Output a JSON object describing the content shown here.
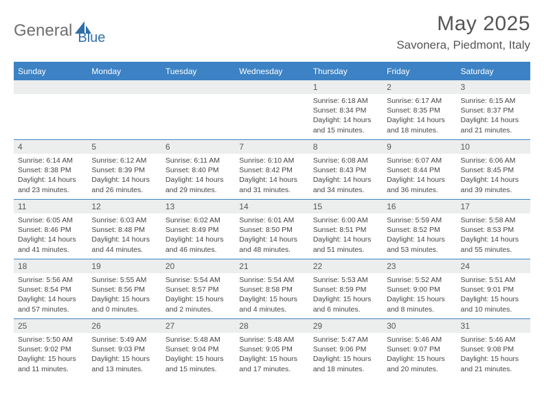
{
  "logo": {
    "word1": "General",
    "word2": "Blue",
    "shape_color": "#2f6fa8",
    "word1_color": "#6e6e6e"
  },
  "title": "May 2025",
  "location": "Savonera, Piedmont, Italy",
  "colors": {
    "header_bar": "#3c82c4",
    "daynum_bg": "#eceded",
    "text": "#3a3a3a",
    "border": "#3c82c4"
  },
  "typography": {
    "title_fontsize": 30,
    "location_fontsize": 17,
    "dow_fontsize": 12,
    "body_fontsize": 10.5
  },
  "days_of_week": [
    "Sunday",
    "Monday",
    "Tuesday",
    "Wednesday",
    "Thursday",
    "Friday",
    "Saturday"
  ],
  "weeks": [
    [
      null,
      null,
      null,
      null,
      {
        "d": "1",
        "sr": "Sunrise: 6:18 AM",
        "ss": "Sunset: 8:34 PM",
        "dl1": "Daylight: 14 hours",
        "dl2": "and 15 minutes."
      },
      {
        "d": "2",
        "sr": "Sunrise: 6:17 AM",
        "ss": "Sunset: 8:35 PM",
        "dl1": "Daylight: 14 hours",
        "dl2": "and 18 minutes."
      },
      {
        "d": "3",
        "sr": "Sunrise: 6:15 AM",
        "ss": "Sunset: 8:37 PM",
        "dl1": "Daylight: 14 hours",
        "dl2": "and 21 minutes."
      }
    ],
    [
      {
        "d": "4",
        "sr": "Sunrise: 6:14 AM",
        "ss": "Sunset: 8:38 PM",
        "dl1": "Daylight: 14 hours",
        "dl2": "and 23 minutes."
      },
      {
        "d": "5",
        "sr": "Sunrise: 6:12 AM",
        "ss": "Sunset: 8:39 PM",
        "dl1": "Daylight: 14 hours",
        "dl2": "and 26 minutes."
      },
      {
        "d": "6",
        "sr": "Sunrise: 6:11 AM",
        "ss": "Sunset: 8:40 PM",
        "dl1": "Daylight: 14 hours",
        "dl2": "and 29 minutes."
      },
      {
        "d": "7",
        "sr": "Sunrise: 6:10 AM",
        "ss": "Sunset: 8:42 PM",
        "dl1": "Daylight: 14 hours",
        "dl2": "and 31 minutes."
      },
      {
        "d": "8",
        "sr": "Sunrise: 6:08 AM",
        "ss": "Sunset: 8:43 PM",
        "dl1": "Daylight: 14 hours",
        "dl2": "and 34 minutes."
      },
      {
        "d": "9",
        "sr": "Sunrise: 6:07 AM",
        "ss": "Sunset: 8:44 PM",
        "dl1": "Daylight: 14 hours",
        "dl2": "and 36 minutes."
      },
      {
        "d": "10",
        "sr": "Sunrise: 6:06 AM",
        "ss": "Sunset: 8:45 PM",
        "dl1": "Daylight: 14 hours",
        "dl2": "and 39 minutes."
      }
    ],
    [
      {
        "d": "11",
        "sr": "Sunrise: 6:05 AM",
        "ss": "Sunset: 8:46 PM",
        "dl1": "Daylight: 14 hours",
        "dl2": "and 41 minutes."
      },
      {
        "d": "12",
        "sr": "Sunrise: 6:03 AM",
        "ss": "Sunset: 8:48 PM",
        "dl1": "Daylight: 14 hours",
        "dl2": "and 44 minutes."
      },
      {
        "d": "13",
        "sr": "Sunrise: 6:02 AM",
        "ss": "Sunset: 8:49 PM",
        "dl1": "Daylight: 14 hours",
        "dl2": "and 46 minutes."
      },
      {
        "d": "14",
        "sr": "Sunrise: 6:01 AM",
        "ss": "Sunset: 8:50 PM",
        "dl1": "Daylight: 14 hours",
        "dl2": "and 48 minutes."
      },
      {
        "d": "15",
        "sr": "Sunrise: 6:00 AM",
        "ss": "Sunset: 8:51 PM",
        "dl1": "Daylight: 14 hours",
        "dl2": "and 51 minutes."
      },
      {
        "d": "16",
        "sr": "Sunrise: 5:59 AM",
        "ss": "Sunset: 8:52 PM",
        "dl1": "Daylight: 14 hours",
        "dl2": "and 53 minutes."
      },
      {
        "d": "17",
        "sr": "Sunrise: 5:58 AM",
        "ss": "Sunset: 8:53 PM",
        "dl1": "Daylight: 14 hours",
        "dl2": "and 55 minutes."
      }
    ],
    [
      {
        "d": "18",
        "sr": "Sunrise: 5:56 AM",
        "ss": "Sunset: 8:54 PM",
        "dl1": "Daylight: 14 hours",
        "dl2": "and 57 minutes."
      },
      {
        "d": "19",
        "sr": "Sunrise: 5:55 AM",
        "ss": "Sunset: 8:56 PM",
        "dl1": "Daylight: 15 hours",
        "dl2": "and 0 minutes."
      },
      {
        "d": "20",
        "sr": "Sunrise: 5:54 AM",
        "ss": "Sunset: 8:57 PM",
        "dl1": "Daylight: 15 hours",
        "dl2": "and 2 minutes."
      },
      {
        "d": "21",
        "sr": "Sunrise: 5:54 AM",
        "ss": "Sunset: 8:58 PM",
        "dl1": "Daylight: 15 hours",
        "dl2": "and 4 minutes."
      },
      {
        "d": "22",
        "sr": "Sunrise: 5:53 AM",
        "ss": "Sunset: 8:59 PM",
        "dl1": "Daylight: 15 hours",
        "dl2": "and 6 minutes."
      },
      {
        "d": "23",
        "sr": "Sunrise: 5:52 AM",
        "ss": "Sunset: 9:00 PM",
        "dl1": "Daylight: 15 hours",
        "dl2": "and 8 minutes."
      },
      {
        "d": "24",
        "sr": "Sunrise: 5:51 AM",
        "ss": "Sunset: 9:01 PM",
        "dl1": "Daylight: 15 hours",
        "dl2": "and 10 minutes."
      }
    ],
    [
      {
        "d": "25",
        "sr": "Sunrise: 5:50 AM",
        "ss": "Sunset: 9:02 PM",
        "dl1": "Daylight: 15 hours",
        "dl2": "and 11 minutes."
      },
      {
        "d": "26",
        "sr": "Sunrise: 5:49 AM",
        "ss": "Sunset: 9:03 PM",
        "dl1": "Daylight: 15 hours",
        "dl2": "and 13 minutes."
      },
      {
        "d": "27",
        "sr": "Sunrise: 5:48 AM",
        "ss": "Sunset: 9:04 PM",
        "dl1": "Daylight: 15 hours",
        "dl2": "and 15 minutes."
      },
      {
        "d": "28",
        "sr": "Sunrise: 5:48 AM",
        "ss": "Sunset: 9:05 PM",
        "dl1": "Daylight: 15 hours",
        "dl2": "and 17 minutes."
      },
      {
        "d": "29",
        "sr": "Sunrise: 5:47 AM",
        "ss": "Sunset: 9:06 PM",
        "dl1": "Daylight: 15 hours",
        "dl2": "and 18 minutes."
      },
      {
        "d": "30",
        "sr": "Sunrise: 5:46 AM",
        "ss": "Sunset: 9:07 PM",
        "dl1": "Daylight: 15 hours",
        "dl2": "and 20 minutes."
      },
      {
        "d": "31",
        "sr": "Sunrise: 5:46 AM",
        "ss": "Sunset: 9:08 PM",
        "dl1": "Daylight: 15 hours",
        "dl2": "and 21 minutes."
      }
    ]
  ]
}
